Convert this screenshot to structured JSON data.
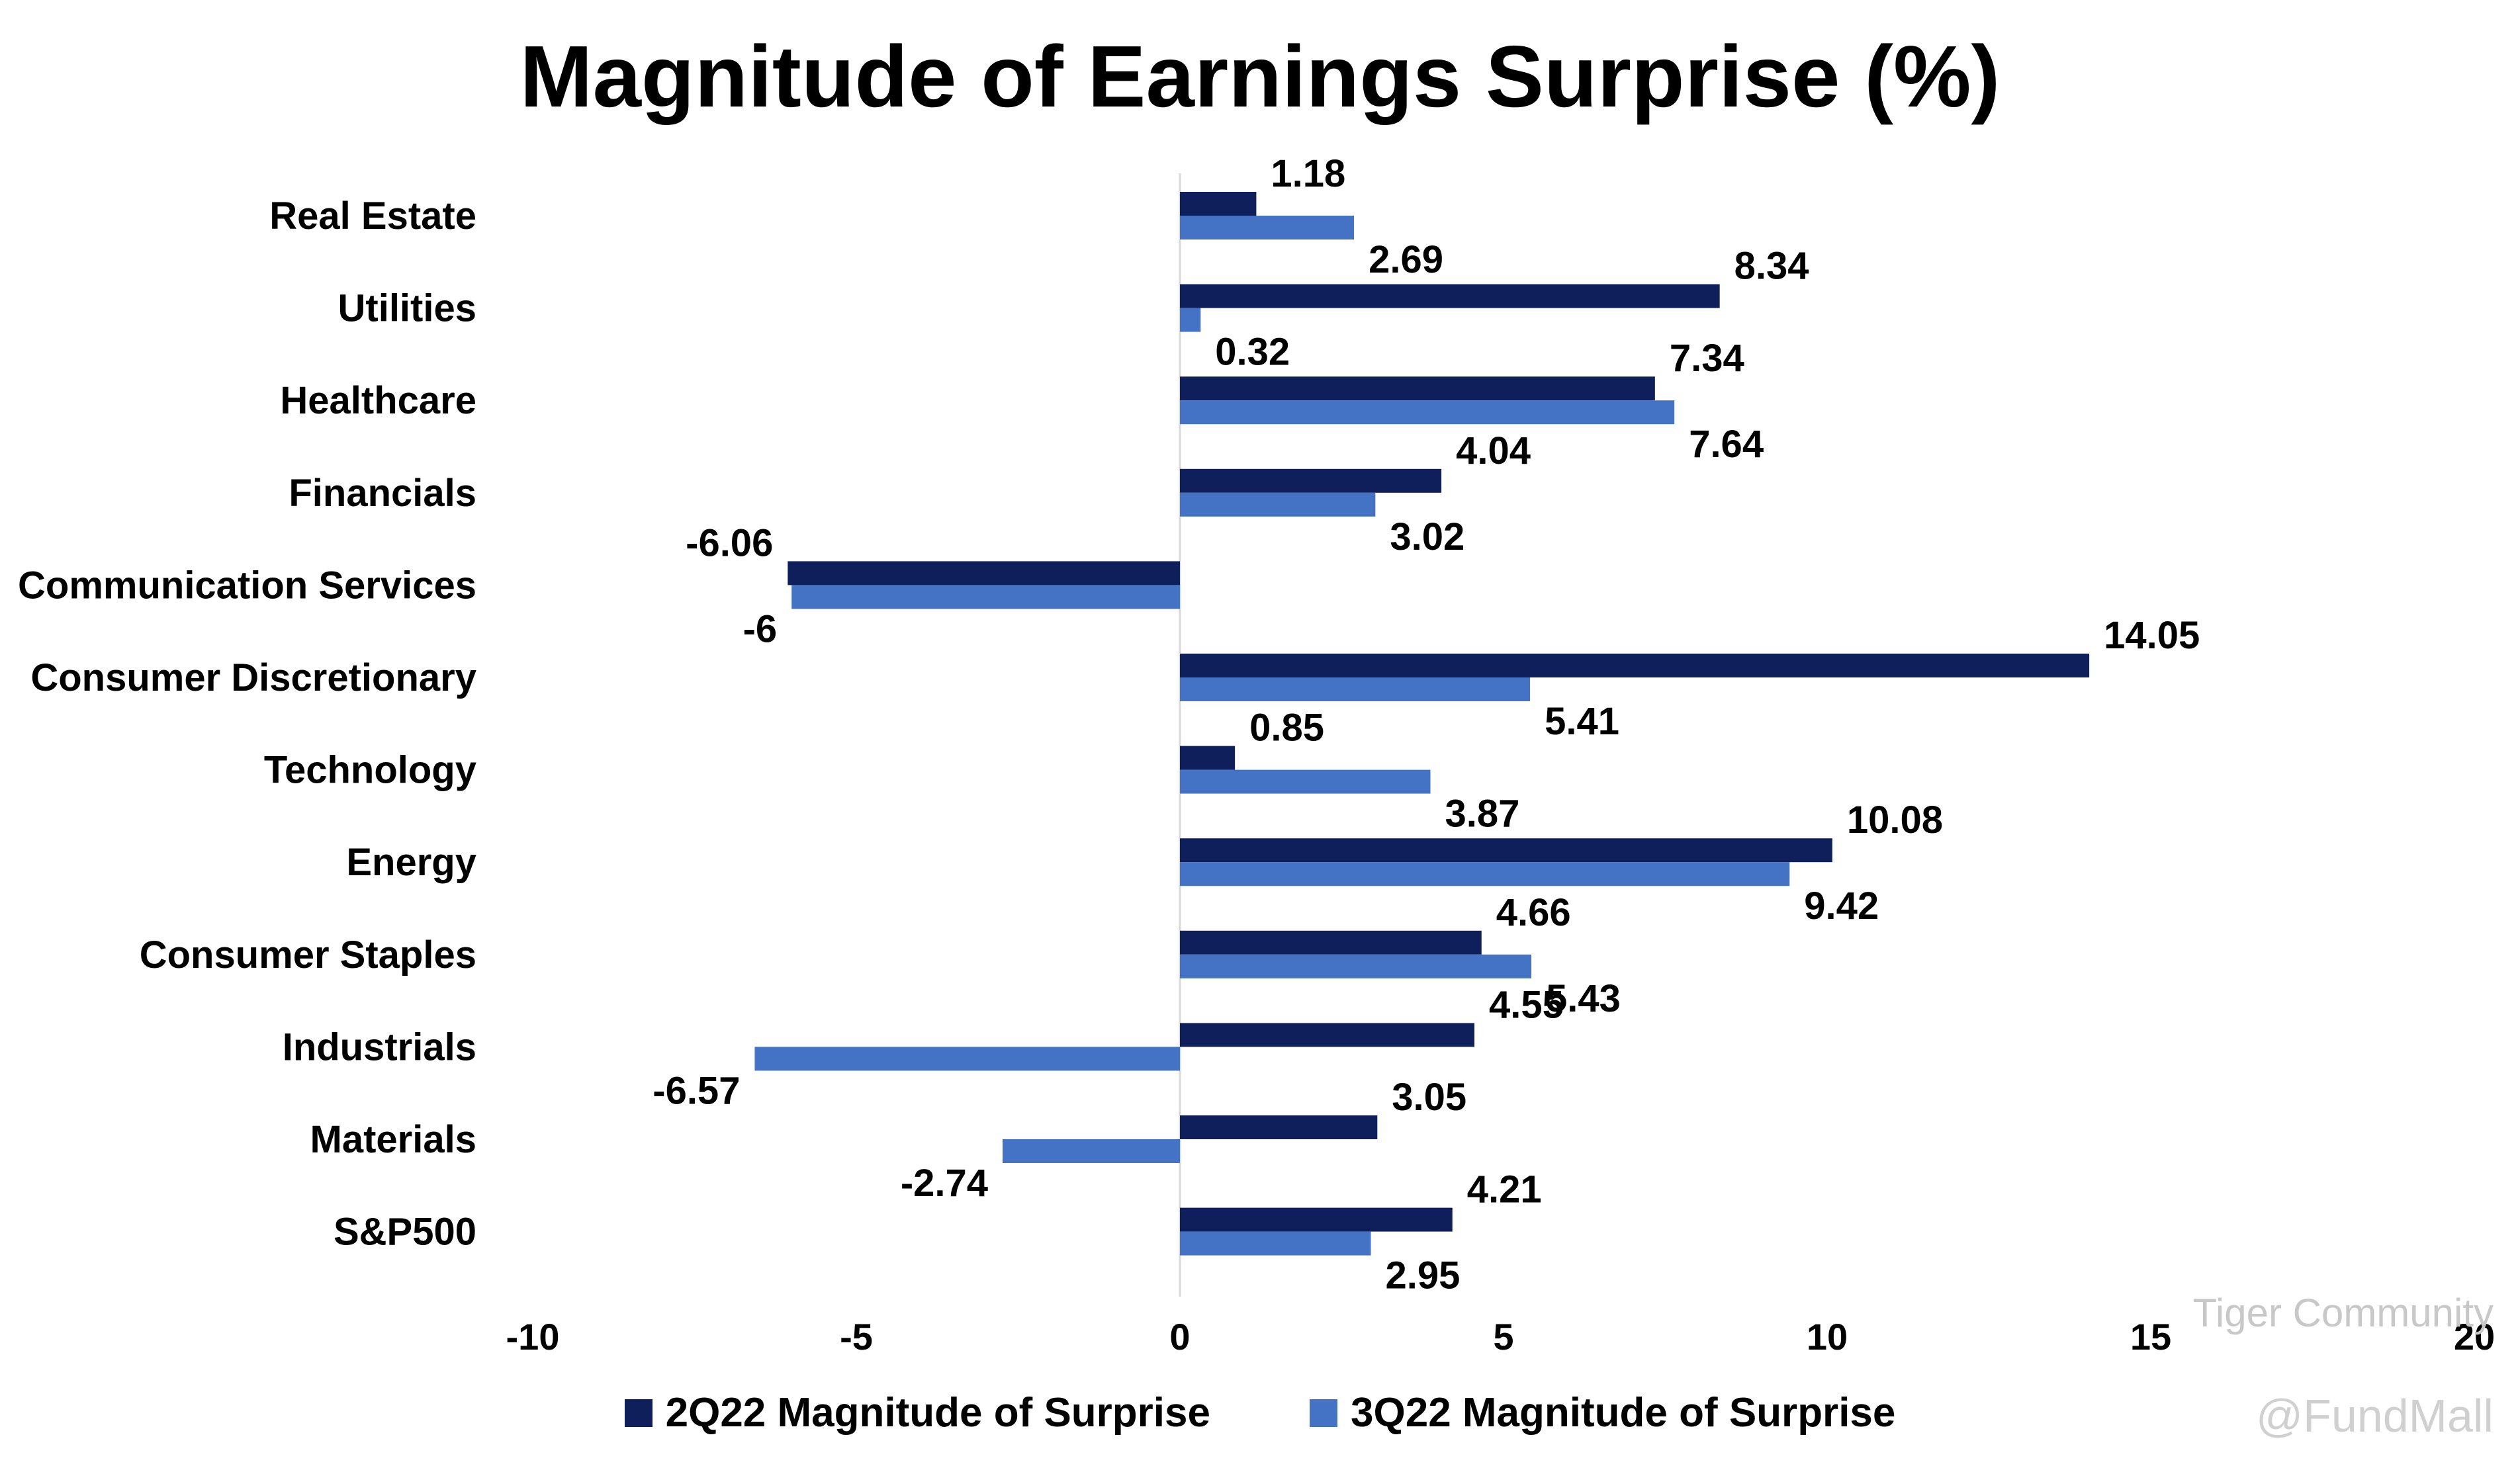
{
  "chart_data": {
    "type": "bar",
    "orientation": "horizontal",
    "title": "Magnitude of Earnings Surprise (%)",
    "categories": [
      "Real Estate",
      "Utilities",
      "Healthcare",
      "Financials",
      "Communication Services",
      "Consumer Discretionary",
      "Technology",
      "Energy",
      "Consumer Staples",
      "Industrials",
      "Materials",
      "S&P500"
    ],
    "series": [
      {
        "name": "2Q22 Magnitude of Surprise",
        "color": "#0f1f5c",
        "values": [
          1.18,
          8.34,
          7.34,
          4.04,
          -6.06,
          14.05,
          0.85,
          10.08,
          4.66,
          4.55,
          3.05,
          4.21
        ]
      },
      {
        "name": "3Q22 Magnitude of Surprise",
        "color": "#4472c4",
        "values": [
          2.69,
          0.32,
          7.64,
          3.02,
          -6,
          5.41,
          3.87,
          9.42,
          5.43,
          -6.57,
          -2.74,
          2.95
        ]
      }
    ],
    "xlim": [
      -10,
      20
    ],
    "xticks": [
      -10,
      -5,
      0,
      5,
      10,
      15,
      20
    ],
    "legend_position": "bottom",
    "grid": false
  },
  "watermark": {
    "line1": "Tiger Community",
    "line2": "@FundMall"
  }
}
